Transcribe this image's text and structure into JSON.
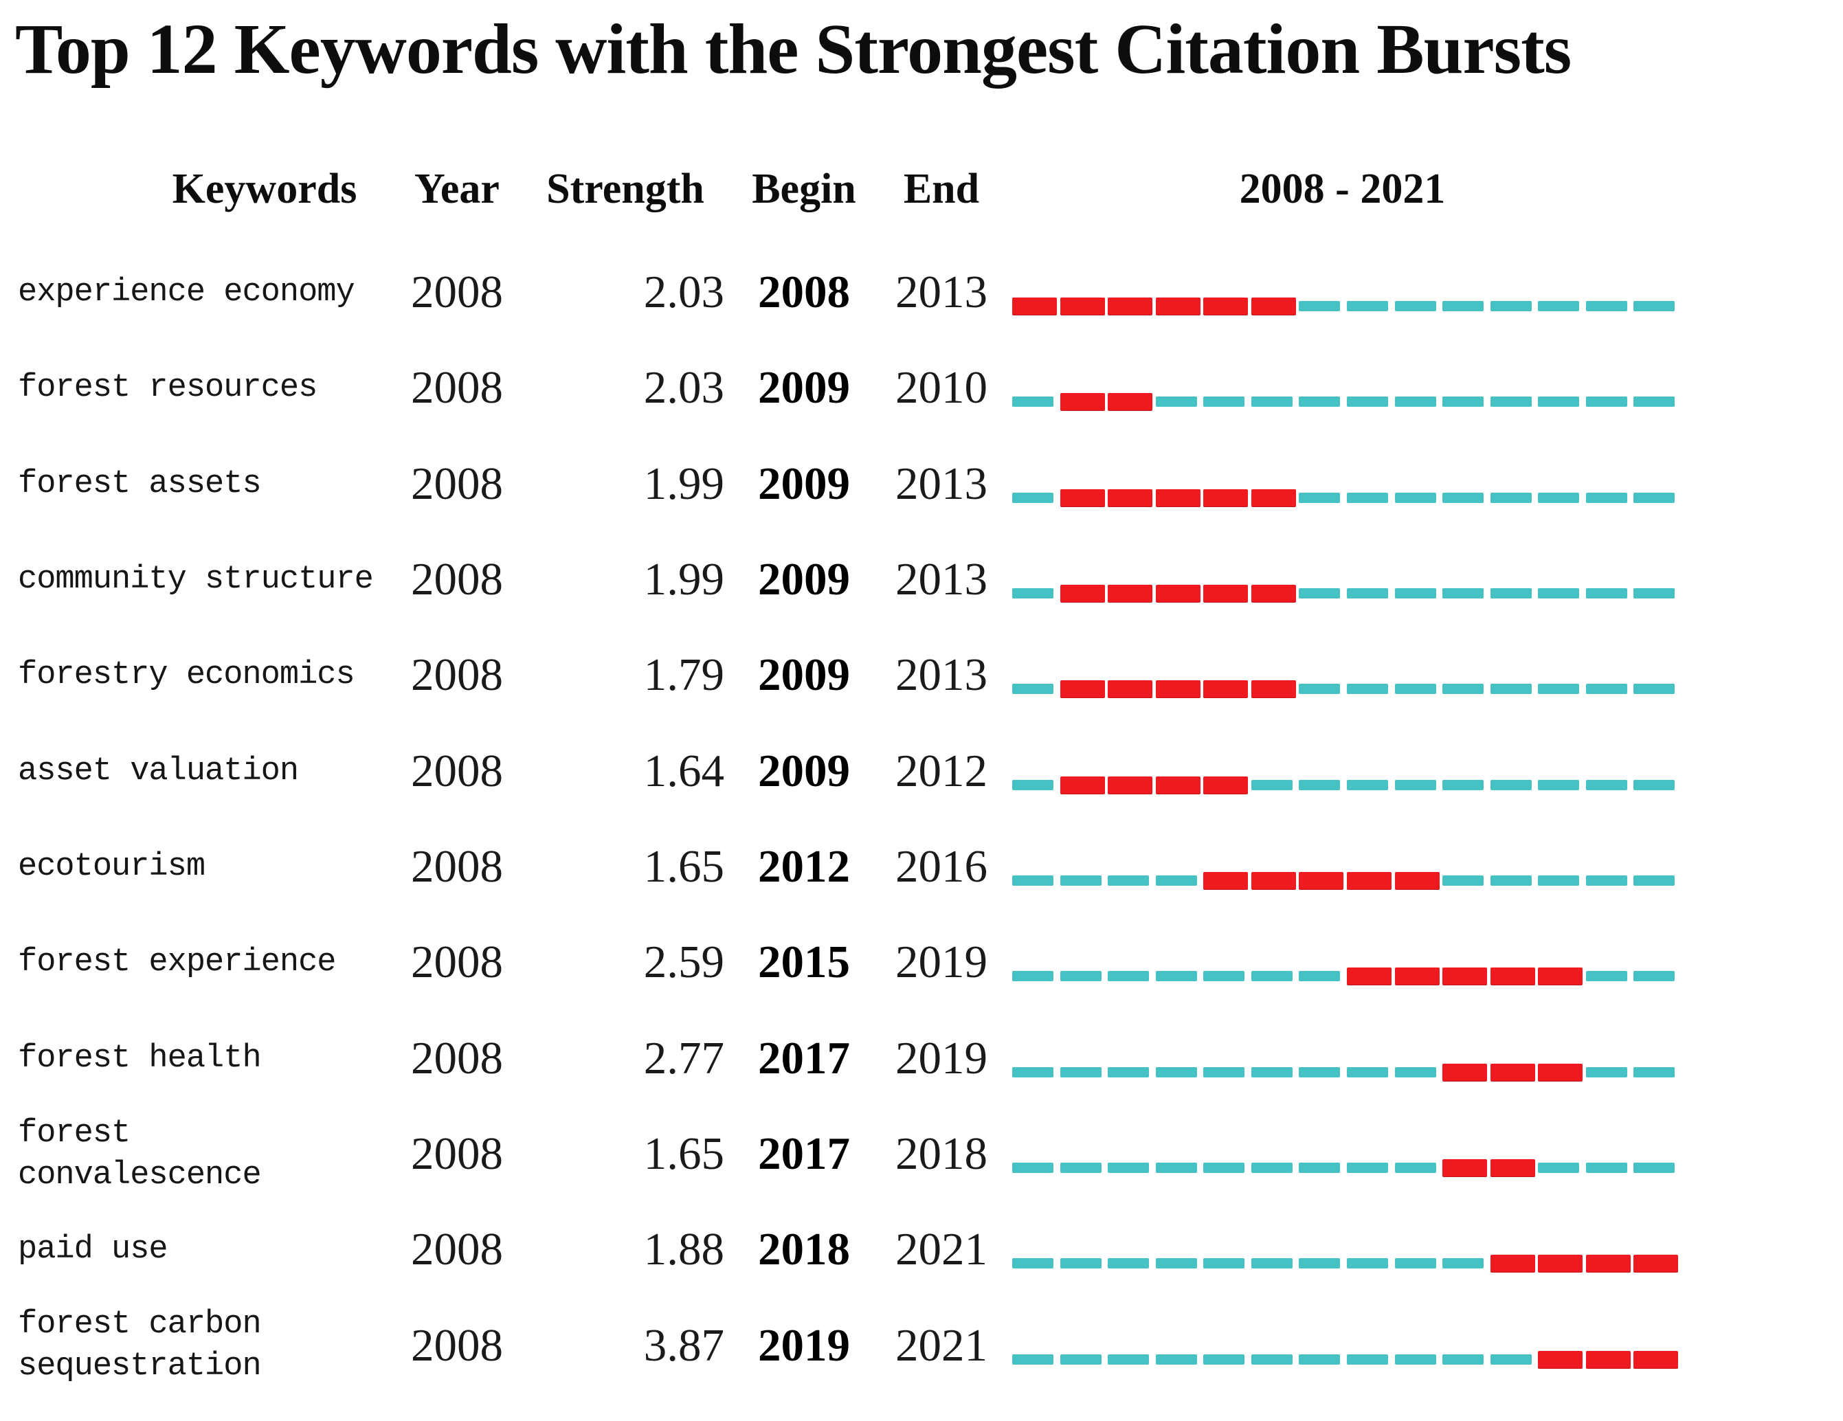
{
  "title": "Top 12 Keywords with the Strongest Citation Bursts",
  "columns": {
    "keywords": "Keywords",
    "year": "Year",
    "strength": "Strength",
    "begin": "Begin",
    "end": "End",
    "timeline": "2008 - 2021"
  },
  "colors": {
    "burst_red": "#ee1a1f",
    "baseline_cyan": "#47c2c4",
    "text": "#111111"
  },
  "chart_data": {
    "type": "table",
    "title": "Top 12 Keywords with the Strongest Citation Bursts",
    "column_headers": [
      "Keywords",
      "Year",
      "Strength",
      "Begin",
      "End",
      "2008 - 2021"
    ],
    "timeline_range": [
      2008,
      2021
    ],
    "timeline_years": 14,
    "legend_note_colors": {
      "burst_interval": "red",
      "non_burst_interval": "cyan"
    },
    "rows": [
      {
        "keyword": "experience economy",
        "year": 2008,
        "strength": 2.03,
        "begin": 2008,
        "end": 2013
      },
      {
        "keyword": "forest resources",
        "year": 2008,
        "strength": 2.03,
        "begin": 2009,
        "end": 2010
      },
      {
        "keyword": "forest assets",
        "year": 2008,
        "strength": 1.99,
        "begin": 2009,
        "end": 2013
      },
      {
        "keyword": "community structure",
        "year": 2008,
        "strength": 1.99,
        "begin": 2009,
        "end": 2013
      },
      {
        "keyword": "forestry economics",
        "year": 2008,
        "strength": 1.79,
        "begin": 2009,
        "end": 2013
      },
      {
        "keyword": "asset valuation",
        "year": 2008,
        "strength": 1.64,
        "begin": 2009,
        "end": 2012
      },
      {
        "keyword": "ecotourism",
        "year": 2008,
        "strength": 1.65,
        "begin": 2012,
        "end": 2016
      },
      {
        "keyword": "forest experience",
        "year": 2008,
        "strength": 2.59,
        "begin": 2015,
        "end": 2019
      },
      {
        "keyword": "forest health",
        "year": 2008,
        "strength": 2.77,
        "begin": 2017,
        "end": 2019
      },
      {
        "keyword": "forest convalescence",
        "year": 2008,
        "strength": 1.65,
        "begin": 2017,
        "end": 2018
      },
      {
        "keyword": "paid use",
        "year": 2008,
        "strength": 1.88,
        "begin": 2018,
        "end": 2021
      },
      {
        "keyword": "forest carbon sequestration",
        "year": 2008,
        "strength": 3.87,
        "begin": 2019,
        "end": 2021
      }
    ]
  }
}
